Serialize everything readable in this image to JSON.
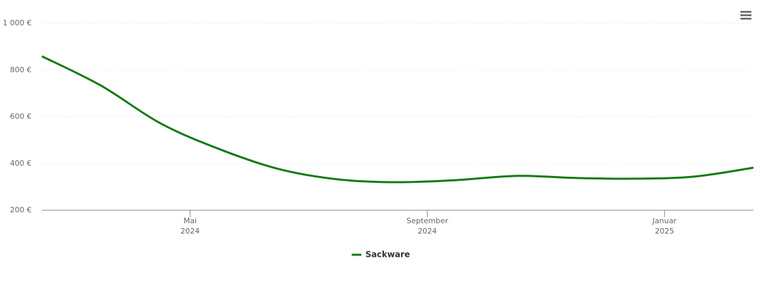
{
  "chart_data": {
    "type": "line",
    "x": [
      "2024-02",
      "2024-03",
      "2024-04",
      "2024-05",
      "2024-06",
      "2024-07",
      "2024-08",
      "2024-09",
      "2024-10",
      "2024-11",
      "2024-12",
      "2025-01",
      "2025-02"
    ],
    "series": [
      {
        "name": "Sackware",
        "color": "#147a14",
        "values": [
          859,
          733,
          572,
          461,
          376,
          332,
          320,
          329,
          347,
          338,
          335,
          344,
          382
        ]
      }
    ],
    "xlim": [
      "2024-02",
      "2025-02"
    ],
    "xticks": [
      {
        "value": "2024-05",
        "label": [
          "Mai",
          "2024"
        ]
      },
      {
        "value": "2024-09",
        "label": [
          "September",
          "2024"
        ]
      },
      {
        "value": "2025-01",
        "label": [
          "Januar",
          "2025"
        ]
      }
    ],
    "ylim": [
      200,
      1000
    ],
    "yticks": [
      {
        "value": 200,
        "label": "200 €"
      },
      {
        "value": 400,
        "label": "400 €"
      },
      {
        "value": 600,
        "label": "600 €"
      },
      {
        "value": 800,
        "label": "800 €"
      },
      {
        "value": 1000,
        "label": "1 000 €"
      }
    ],
    "grid": true
  }
}
